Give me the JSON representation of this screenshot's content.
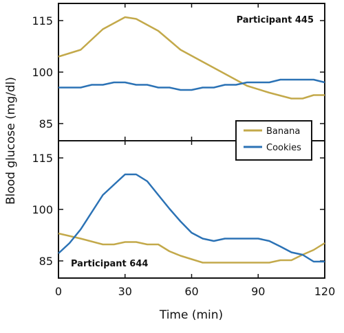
{
  "chart_data": {
    "type": "line",
    "ylabel": "Blood glucose (mg/dl)",
    "xlabel": "Time (min)",
    "xlim": [
      0,
      120
    ],
    "xticks": [
      "0",
      "30",
      "60",
      "90",
      "120"
    ],
    "grid": false,
    "legend": {
      "placement": "upper panel, bottom-right",
      "entries": [
        "Banana",
        "Cookies"
      ]
    },
    "panels": [
      {
        "annotation": "Participant 445",
        "ylim": [
          80,
          120
        ],
        "yticks": [
          "85",
          "100",
          "115"
        ],
        "series": [
          {
            "name": "Banana",
            "color": "#c3a94a",
            "x": [
              0,
              10,
              20,
              30,
              35,
              45,
              55,
              65,
              75,
              85,
              95,
              105,
              110,
              115,
              120
            ],
            "y": [
              104.5,
              106.5,
              112.5,
              116,
              115.5,
              112,
              106.5,
              103,
              99.5,
              96,
              94,
              92.3,
              92.3,
              93.3,
              93.3
            ]
          },
          {
            "name": "Cookies",
            "color": "#2b72b5",
            "x": [
              0,
              5,
              10,
              15,
              20,
              25,
              30,
              35,
              40,
              45,
              50,
              55,
              60,
              65,
              70,
              75,
              80,
              85,
              90,
              95,
              100,
              105,
              110,
              115,
              120
            ],
            "y": [
              95.5,
              95.5,
              95.5,
              96.3,
              96.3,
              97,
              97,
              96.3,
              96.3,
              95.5,
              95.5,
              94.8,
              94.8,
              95.5,
              95.5,
              96.3,
              96.3,
              97,
              97,
              97,
              97.8,
              97.8,
              97.8,
              97.8,
              97
            ]
          }
        ]
      },
      {
        "annotation": "Participant 644",
        "ylim": [
          80,
          120
        ],
        "yticks": [
          "85",
          "100",
          "115"
        ],
        "series": [
          {
            "name": "Banana",
            "color": "#c3a94a",
            "x": [
              0,
              10,
              20,
              25,
              30,
              35,
              40,
              45,
              50,
              55,
              60,
              65,
              70,
              75,
              80,
              85,
              90,
              95,
              100,
              105,
              110,
              115,
              120
            ],
            "y": [
              93,
              91.5,
              89.8,
              89.8,
              90.5,
              90.5,
              89.8,
              89.8,
              87.8,
              86.5,
              85.5,
              84.5,
              84.5,
              84.5,
              84.5,
              84.5,
              84.5,
              84.5,
              85.2,
              85.2,
              86.8,
              88.2,
              90.2
            ]
          },
          {
            "name": "Cookies",
            "color": "#2b72b5",
            "x": [
              0,
              5,
              10,
              15,
              20,
              25,
              30,
              35,
              40,
              45,
              50,
              55,
              60,
              65,
              70,
              75,
              80,
              85,
              90,
              95,
              100,
              105,
              110,
              115,
              120
            ],
            "y": [
              87.2,
              90.2,
              94.2,
              99.2,
              104.2,
              107.2,
              110.2,
              110.2,
              108.2,
              104.2,
              100.2,
              96.5,
              93.2,
              91.5,
              90.8,
              91.5,
              91.5,
              91.5,
              91.5,
              90.8,
              89.2,
              87.5,
              86.8,
              84.8,
              84.8
            ]
          }
        ]
      }
    ]
  }
}
